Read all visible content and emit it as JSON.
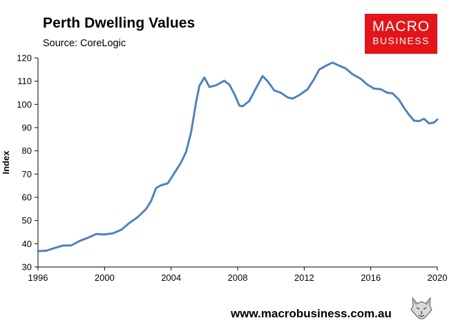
{
  "header": {
    "title": "Perth Dwelling Values",
    "subtitle": "Source: CoreLogic"
  },
  "brand": {
    "line1": "MACRO",
    "line2": "BUSINESS",
    "color": "#e3151a"
  },
  "footer": {
    "url": "www.macrobusiness.com.au",
    "logo_icon": "wolf-head-icon"
  },
  "chart_data": {
    "type": "line",
    "title": "Perth Dwelling Values",
    "subtitle": "Source: CoreLogic",
    "xlabel": "",
    "ylabel": "Index",
    "xlim": [
      1996,
      2020
    ],
    "ylim": [
      30,
      120
    ],
    "xticks": [
      1996,
      2000,
      2004,
      2008,
      2012,
      2016,
      2020
    ],
    "yticks": [
      30,
      40,
      50,
      60,
      70,
      80,
      90,
      100,
      110,
      120
    ],
    "grid": false,
    "legend": false,
    "line_color": "#4f81bd",
    "series": [
      {
        "name": "Perth Dwelling Values",
        "points": [
          [
            1996.0,
            36.8
          ],
          [
            1996.5,
            37.0
          ],
          [
            1997.0,
            38.2
          ],
          [
            1997.5,
            39.2
          ],
          [
            1998.0,
            39.3
          ],
          [
            1998.5,
            41.2
          ],
          [
            1999.0,
            42.6
          ],
          [
            1999.5,
            44.2
          ],
          [
            2000.0,
            44.0
          ],
          [
            2000.5,
            44.5
          ],
          [
            2001.0,
            46.0
          ],
          [
            2001.5,
            49.0
          ],
          [
            2002.0,
            51.5
          ],
          [
            2002.5,
            55.0
          ],
          [
            2002.8,
            58.5
          ],
          [
            2003.1,
            64.0
          ],
          [
            2003.4,
            65.2
          ],
          [
            2003.8,
            66.0
          ],
          [
            2004.2,
            70.5
          ],
          [
            2004.6,
            75.0
          ],
          [
            2004.9,
            79.5
          ],
          [
            2005.2,
            88.0
          ],
          [
            2005.5,
            101.0
          ],
          [
            2005.7,
            108.0
          ],
          [
            2006.0,
            111.6
          ],
          [
            2006.3,
            107.5
          ],
          [
            2006.7,
            108.2
          ],
          [
            2007.2,
            110.2
          ],
          [
            2007.5,
            108.5
          ],
          [
            2007.8,
            104.5
          ],
          [
            2008.1,
            99.5
          ],
          [
            2008.3,
            99.2
          ],
          [
            2008.7,
            101.5
          ],
          [
            2009.1,
            107.0
          ],
          [
            2009.5,
            112.2
          ],
          [
            2009.8,
            110.0
          ],
          [
            2010.2,
            106.0
          ],
          [
            2010.6,
            105.0
          ],
          [
            2011.0,
            103.0
          ],
          [
            2011.3,
            102.5
          ],
          [
            2011.7,
            104.0
          ],
          [
            2012.2,
            106.5
          ],
          [
            2012.6,
            111.0
          ],
          [
            2012.9,
            115.0
          ],
          [
            2013.3,
            116.6
          ],
          [
            2013.7,
            118.0
          ],
          [
            2014.0,
            117.0
          ],
          [
            2014.5,
            115.5
          ],
          [
            2014.9,
            113.0
          ],
          [
            2015.4,
            111.0
          ],
          [
            2015.8,
            108.5
          ],
          [
            2016.2,
            106.8
          ],
          [
            2016.6,
            106.5
          ],
          [
            2017.0,
            105.0
          ],
          [
            2017.3,
            104.8
          ],
          [
            2017.7,
            102.0
          ],
          [
            2018.0,
            98.5
          ],
          [
            2018.3,
            95.5
          ],
          [
            2018.6,
            93.0
          ],
          [
            2018.9,
            92.8
          ],
          [
            2019.2,
            93.8
          ],
          [
            2019.5,
            91.8
          ],
          [
            2019.8,
            92.2
          ],
          [
            2020.0,
            93.5
          ]
        ]
      }
    ]
  }
}
